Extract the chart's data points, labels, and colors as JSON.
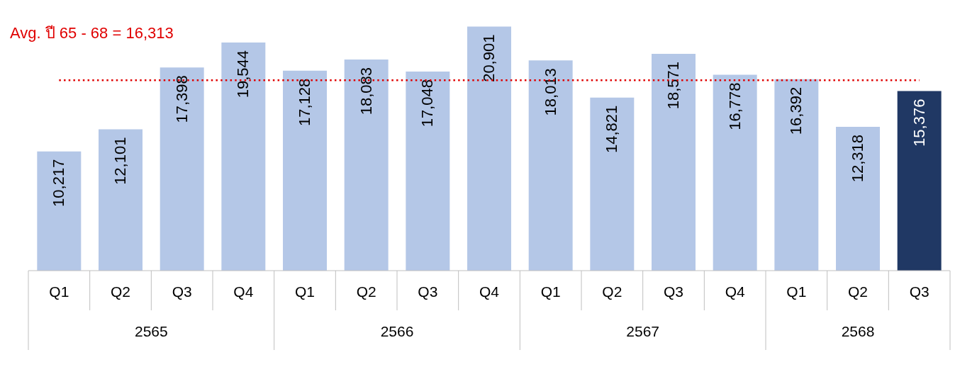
{
  "chart_data": {
    "type": "bar",
    "categories": [
      "Q1",
      "Q2",
      "Q3",
      "Q4",
      "Q1",
      "Q2",
      "Q3",
      "Q4",
      "Q1",
      "Q2",
      "Q3",
      "Q4",
      "Q1",
      "Q2",
      "Q3"
    ],
    "values": [
      10217,
      12101,
      17398,
      19544,
      17128,
      18083,
      17048,
      20901,
      18013,
      14821,
      18571,
      16778,
      16392,
      12318,
      15376
    ],
    "value_labels": [
      "10,217",
      "12,101",
      "17,398",
      "19,544",
      "17,128",
      "18,083",
      "17,048",
      "20,901",
      "18,013",
      "14,821",
      "18,571",
      "16,778",
      "16,392",
      "12,318",
      "15,376"
    ],
    "colors": [
      "#b4c7e7",
      "#b4c7e7",
      "#b4c7e7",
      "#b4c7e7",
      "#b4c7e7",
      "#b4c7e7",
      "#b4c7e7",
      "#b4c7e7",
      "#b4c7e7",
      "#b4c7e7",
      "#b4c7e7",
      "#b4c7e7",
      "#b4c7e7",
      "#b4c7e7",
      "#203864"
    ],
    "ref_lines": [
      {
        "axis": "y",
        "value": 16313,
        "label": "Avg. ปี 65 - 68 = 16,313",
        "color": "#e00000",
        "line_style": "dotted"
      }
    ],
    "annotations": [
      "2565",
      "2566",
      "2567",
      "2568"
    ]
  }
}
